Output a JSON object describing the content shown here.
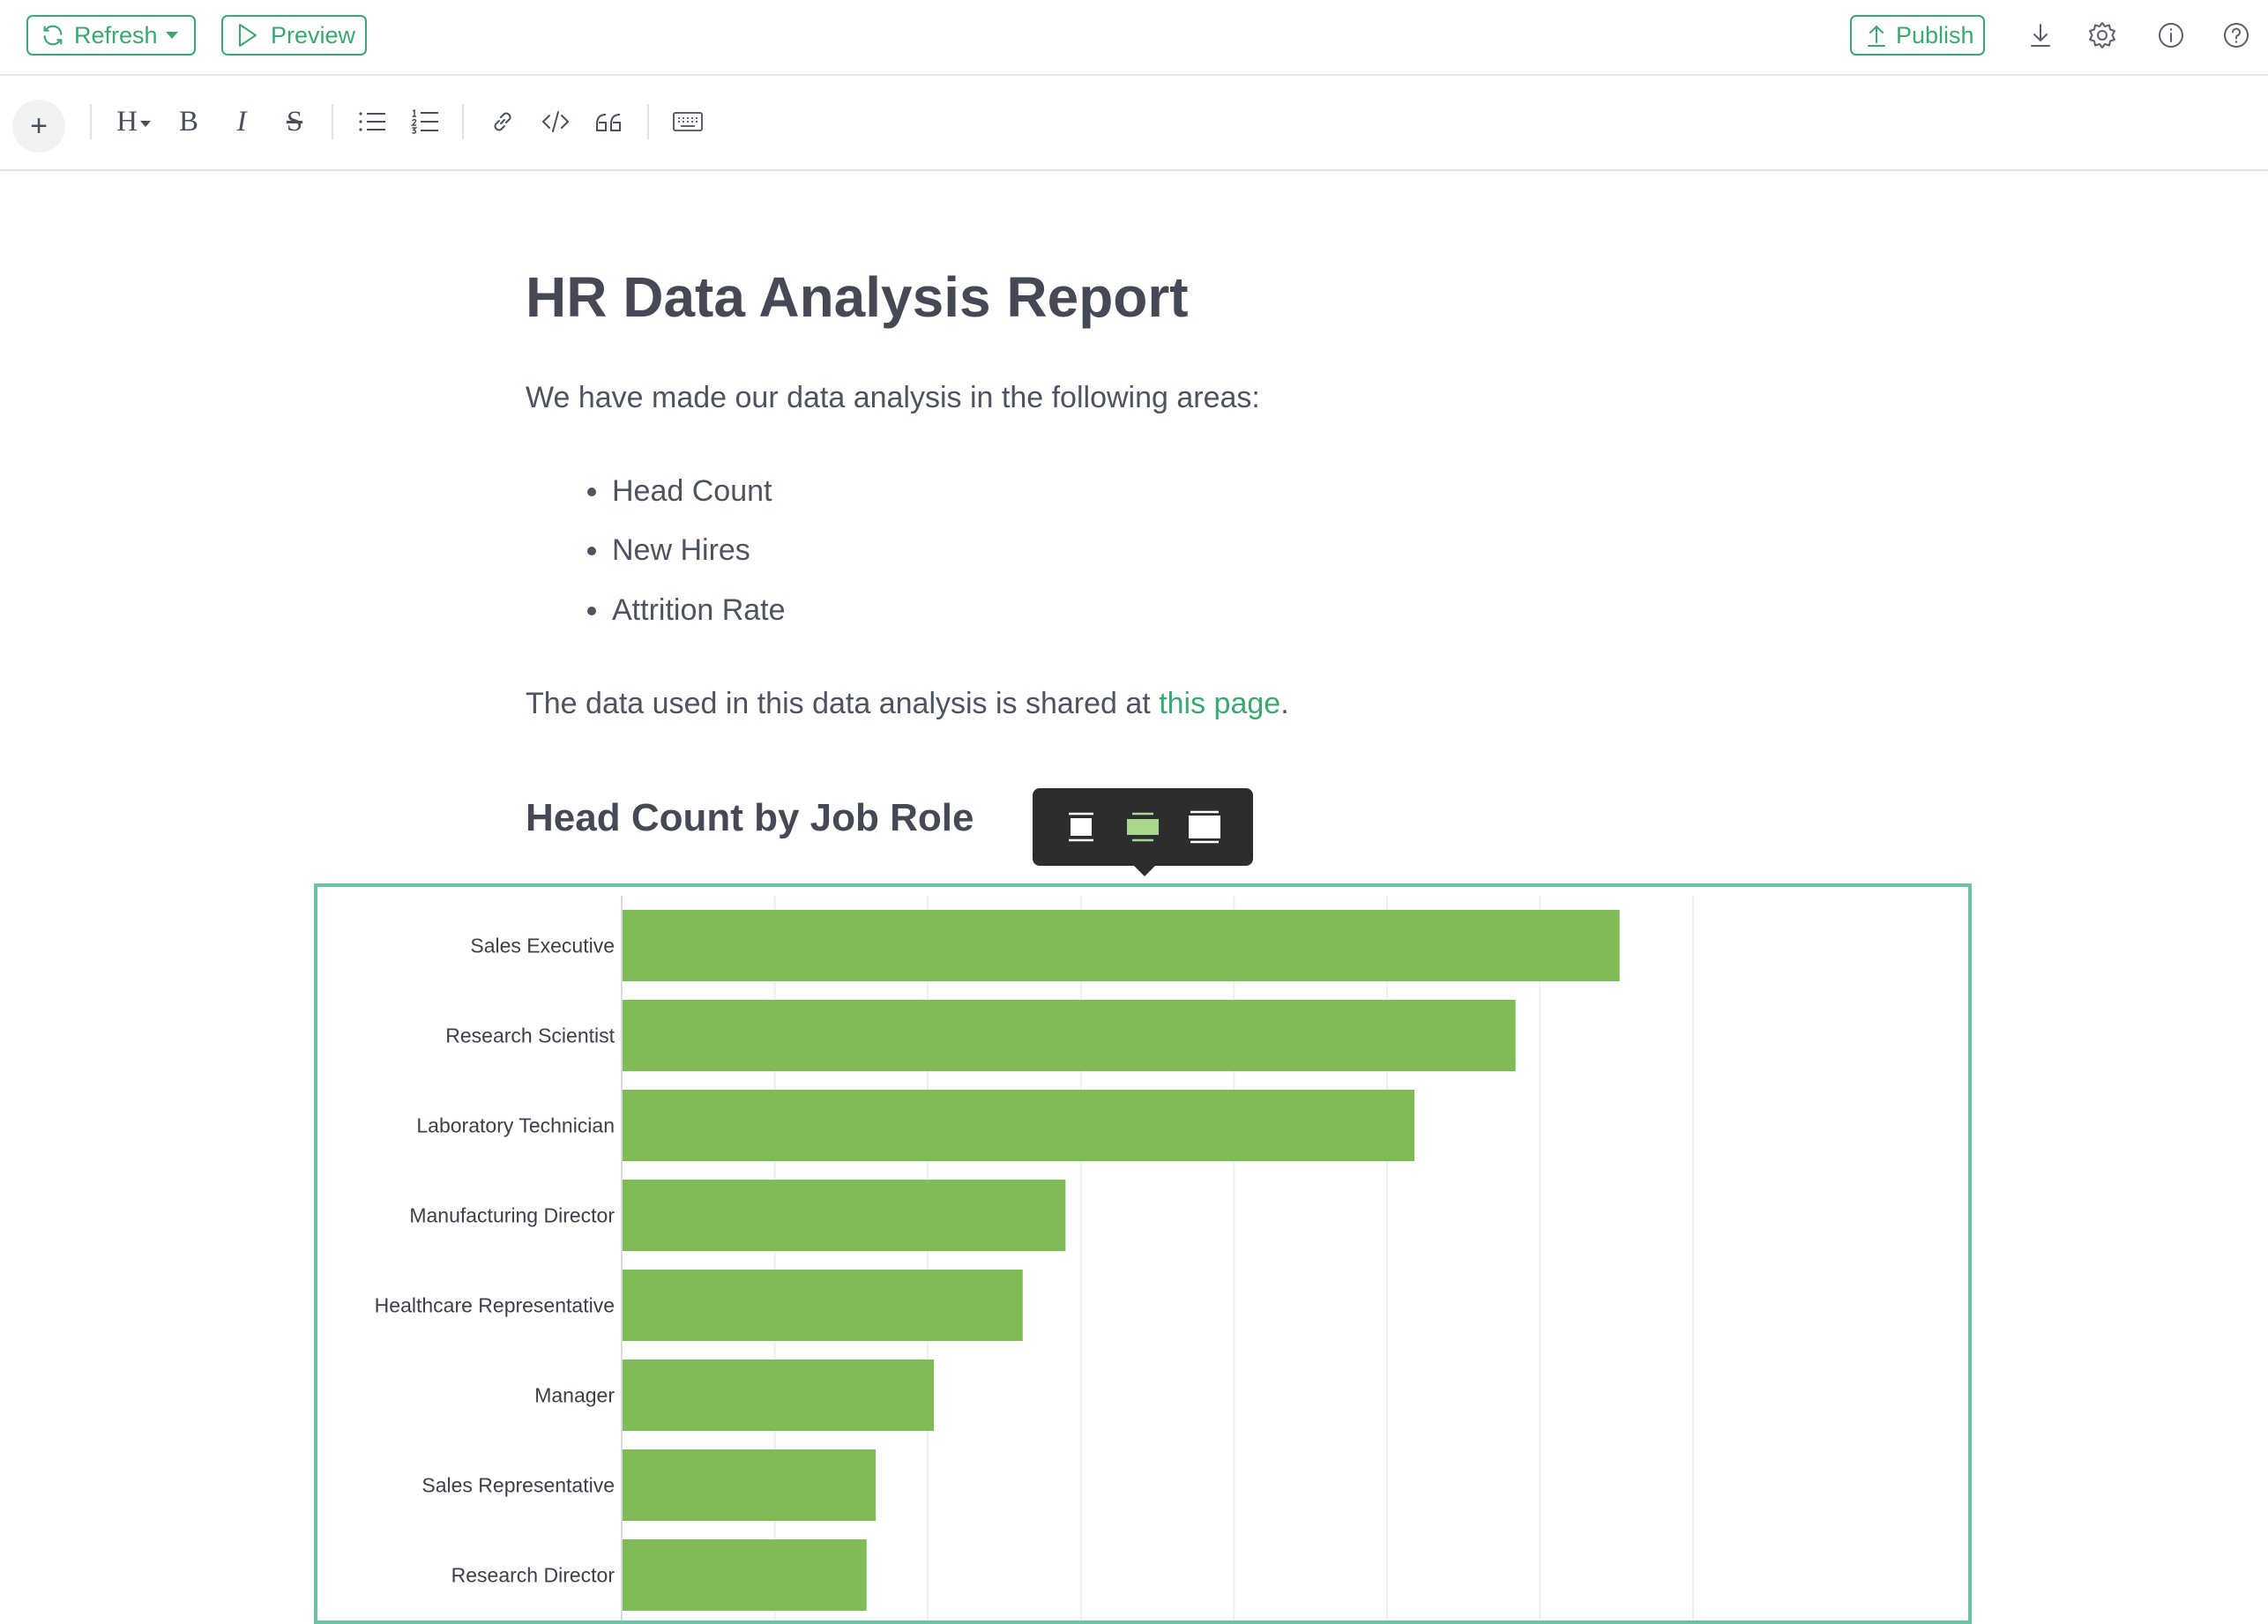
{
  "topbar": {
    "refresh_label": "Refresh",
    "preview_label": "Preview",
    "publish_label": "Publish",
    "accent_color": "#3aa870",
    "icons": [
      "refresh-icon",
      "caret-down-icon",
      "play-icon",
      "upload-icon",
      "download-icon",
      "gear-icon",
      "info-icon",
      "help-icon"
    ]
  },
  "format_toolbar": {
    "add_label": "+",
    "heading_label": "H",
    "bold_label": "B",
    "italic_label": "I",
    "strike_label": "S",
    "icons": [
      "bullet-list-icon",
      "numbered-list-icon",
      "link-icon",
      "code-icon",
      "quote-icon",
      "keyboard-icon"
    ]
  },
  "document": {
    "title": "HR Data Analysis Report",
    "intro": "We have made our data analysis in the following areas:",
    "areas": [
      "Head Count",
      "New Hires",
      "Attrition Rate"
    ],
    "data_note_prefix": "The data used in this data analysis is shared at ",
    "data_note_link": "this page",
    "data_note_suffix": ".",
    "link_color": "#3aa870",
    "section_title": "Head Count by Job Role"
  },
  "image_toolbar": {
    "icons": [
      "align-inline-icon",
      "align-wide-icon",
      "align-full-icon"
    ],
    "active_index": 1,
    "active_color": "#a8d88e"
  },
  "chart_data": {
    "type": "bar",
    "orientation": "horizontal",
    "categories": [
      "Sales Executive",
      "Research Scientist",
      "Laboratory Technician",
      "Manufacturing Director",
      "Healthcare Representative",
      "Manager",
      "Sales Representative",
      "Research Director"
    ],
    "values": [
      326,
      292,
      259,
      145,
      131,
      102,
      83,
      80
    ],
    "xlim": [
      0,
      350
    ],
    "grid": true,
    "bar_color": "#80bc55",
    "frame_color": "#6cc3a4",
    "title": "",
    "xlabel": "",
    "ylabel": ""
  }
}
